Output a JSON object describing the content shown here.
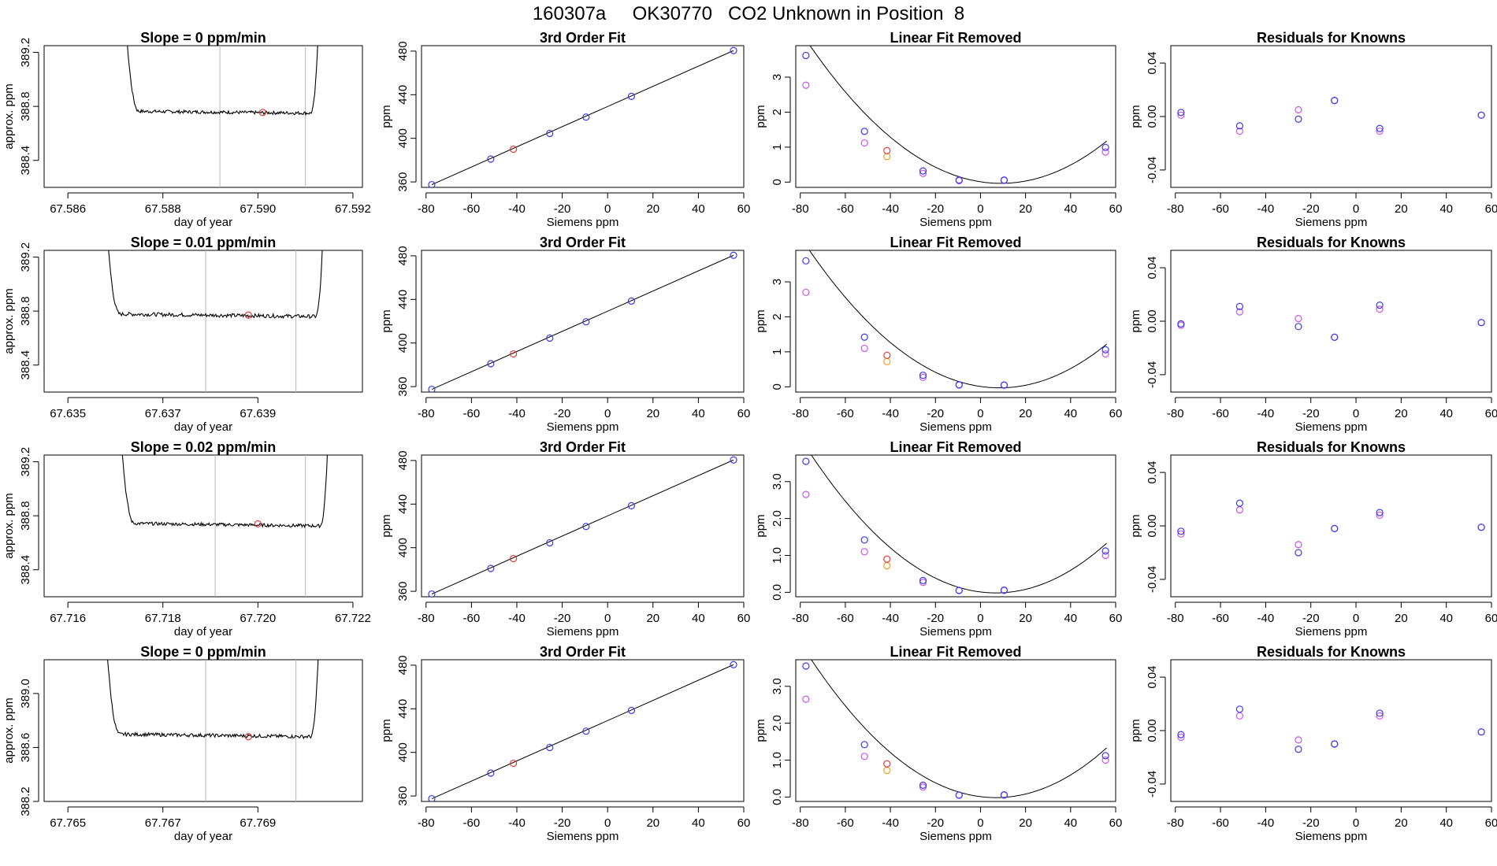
{
  "page_title": "160307a     OK30770   CO2 Unknown in Position  8",
  "colors": {
    "blue": "#3a3ae8",
    "magenta": "#cc55e6",
    "red": "#e03a3a",
    "orange": "#f0a020",
    "gray_line": "#b8b8b8",
    "trace": "#000000"
  },
  "chart_data": [
    {
      "type": "line",
      "row": 0,
      "title": "Slope =  0  ppm/min",
      "xlabel": "day of year",
      "ylabel": "approx. ppm",
      "xlim": [
        67.5855,
        67.5922
      ],
      "ylim": [
        388.2,
        389.25
      ],
      "xticks": [
        67.586,
        67.588,
        67.59,
        67.592
      ],
      "xtick_labels": [
        "67.586",
        "67.588",
        "67.590",
        "67.592"
      ],
      "yticks": [
        388.4,
        388.8,
        389.2
      ],
      "ytick_labels": [
        "388.4",
        "388.8",
        "389.2"
      ],
      "vlines": [
        67.5892,
        67.591
      ],
      "trace": {
        "x0": 67.5868,
        "x1": 67.5913,
        "rise_left": 67.5871,
        "rise_right": 67.5911,
        "level": 388.765,
        "noise": 0.012,
        "drift": -0.015
      },
      "marker": {
        "x": 67.5901,
        "y": 388.755
      }
    },
    {
      "type": "scatter",
      "row": 0,
      "title": "3rd Order Fit",
      "xlabel": "Siemens ppm",
      "ylabel": "ppm",
      "xlim": [
        -82,
        60
      ],
      "ylim": [
        355,
        485
      ],
      "xticks": [
        -80,
        -60,
        -40,
        -20,
        0,
        20,
        40,
        60
      ],
      "yticks": [
        360,
        400,
        440,
        480
      ],
      "fit_line": [
        [
          -77.5,
          357.5
        ],
        [
          55.5,
          480.5
        ]
      ],
      "points_blue": [
        [
          -77.5,
          357.5
        ],
        [
          -51.5,
          381
        ],
        [
          -25.5,
          404.5
        ],
        [
          -9.5,
          419.5
        ],
        [
          10.5,
          438.5
        ],
        [
          55.5,
          480.5
        ]
      ],
      "points_red": [
        [
          -41.5,
          390
        ]
      ]
    },
    {
      "type": "scatter",
      "row": 0,
      "title": "Linear Fit Removed",
      "xlabel": "Siemens ppm",
      "ylabel": "ppm",
      "xlim": [
        -82,
        60
      ],
      "ylim": [
        -0.15,
        3.9
      ],
      "xticks": [
        -80,
        -60,
        -40,
        -20,
        0,
        20,
        40,
        60
      ],
      "yticks": [
        0,
        1,
        2,
        3
      ],
      "curve": {
        "a": 0.000548,
        "b": -0.00994,
        "c": 0.01
      },
      "points_blue": [
        [
          -77.5,
          3.62
        ],
        [
          -51.5,
          1.45
        ],
        [
          -25.5,
          0.32
        ],
        [
          -9.5,
          0.06
        ],
        [
          10.5,
          0.06
        ],
        [
          55.5,
          0.99
        ]
      ],
      "points_magenta": [
        [
          -77.5,
          2.77
        ],
        [
          -51.5,
          1.12
        ],
        [
          -25.5,
          0.25
        ],
        [
          -9.5,
          0.04
        ],
        [
          10.5,
          0.05
        ],
        [
          55.5,
          0.86
        ]
      ],
      "points_red": [
        [
          -41.5,
          0.9
        ]
      ],
      "points_orange": [
        [
          -41.5,
          0.73
        ]
      ]
    },
    {
      "type": "scatter",
      "row": 0,
      "title": "Residuals for Knowns",
      "xlabel": "Siemens ppm",
      "ylabel": "ppm",
      "xlim": [
        -82,
        60
      ],
      "ylim": [
        -0.053,
        0.053
      ],
      "xticks": [
        -80,
        -60,
        -40,
        -20,
        0,
        20,
        40,
        60
      ],
      "yticks": [
        -0.04,
        0.0,
        0.04
      ],
      "ytick_labels": [
        "-0.04",
        "0.00",
        "0.04"
      ],
      "points_blue": [
        [
          -77.5,
          0.003
        ],
        [
          -51.5,
          -0.007
        ],
        [
          -25.5,
          -0.002
        ],
        [
          -9.5,
          0.012
        ],
        [
          10.5,
          -0.009
        ],
        [
          55.5,
          0.001
        ]
      ],
      "points_magenta": [
        [
          -77.5,
          0.001
        ],
        [
          -51.5,
          -0.011
        ],
        [
          -25.5,
          0.005
        ],
        [
          -9.5,
          0.012
        ],
        [
          10.5,
          -0.011
        ],
        [
          55.5,
          0.001
        ]
      ]
    },
    {
      "type": "line",
      "row": 1,
      "title": "Slope =  0.01  ppm/min",
      "xlabel": "day of year",
      "ylabel": "approx. ppm",
      "xlim": [
        67.6345,
        67.6412
      ],
      "ylim": [
        388.2,
        389.25
      ],
      "xticks": [
        67.635,
        67.637,
        67.639
      ],
      "xtick_labels": [
        "67.635",
        "67.637",
        "67.639"
      ],
      "yticks": [
        388.4,
        388.8,
        389.2
      ],
      "ytick_labels": [
        "388.4",
        "388.8",
        "389.2"
      ],
      "vlines": [
        67.6379,
        67.6398
      ],
      "trace": {
        "x0": 67.6354,
        "x1": 67.6404,
        "rise_left": 67.6357,
        "rise_right": 67.6402,
        "level": 388.78,
        "noise": 0.014,
        "drift": -0.02
      },
      "marker": {
        "x": 67.6388,
        "y": 388.77
      }
    },
    {
      "type": "scatter",
      "row": 1,
      "title": "3rd Order Fit",
      "xlabel": "Siemens ppm",
      "ylabel": "ppm",
      "xlim": [
        -82,
        60
      ],
      "ylim": [
        355,
        485
      ],
      "xticks": [
        -80,
        -60,
        -40,
        -20,
        0,
        20,
        40,
        60
      ],
      "yticks": [
        360,
        400,
        440,
        480
      ],
      "fit_line": [
        [
          -77.5,
          357.5
        ],
        [
          55.5,
          480.5
        ]
      ],
      "points_blue": [
        [
          -77.5,
          357.5
        ],
        [
          -51.5,
          381
        ],
        [
          -25.5,
          404.5
        ],
        [
          -9.5,
          419.5
        ],
        [
          10.5,
          438.5
        ],
        [
          55.5,
          480.5
        ]
      ],
      "points_red": [
        [
          -41.5,
          390
        ]
      ]
    },
    {
      "type": "scatter",
      "row": 1,
      "title": "Linear Fit Removed",
      "xlabel": "Siemens ppm",
      "ylabel": "ppm",
      "xlim": [
        -82,
        60
      ],
      "ylim": [
        -0.15,
        3.9
      ],
      "xticks": [
        -80,
        -60,
        -40,
        -20,
        0,
        20,
        40,
        60
      ],
      "yticks": [
        0,
        1,
        2,
        3
      ],
      "curve": {
        "a": 0.000552,
        "b": -0.00932,
        "c": 0.01
      },
      "points_blue": [
        [
          -77.5,
          3.6
        ],
        [
          -51.5,
          1.42
        ],
        [
          -25.5,
          0.33
        ],
        [
          -9.5,
          0.06
        ],
        [
          10.5,
          0.05
        ],
        [
          55.5,
          1.06
        ]
      ],
      "points_magenta": [
        [
          -77.5,
          2.7
        ],
        [
          -51.5,
          1.1
        ],
        [
          -25.5,
          0.27
        ],
        [
          -9.5,
          0.05
        ],
        [
          10.5,
          0.05
        ],
        [
          55.5,
          0.94
        ]
      ],
      "points_red": [
        [
          -41.5,
          0.9
        ]
      ],
      "points_orange": [
        [
          -41.5,
          0.72
        ]
      ]
    },
    {
      "type": "scatter",
      "row": 1,
      "title": "Residuals for Knowns",
      "xlabel": "Siemens ppm",
      "ylabel": "ppm",
      "xlim": [
        -82,
        60
      ],
      "ylim": [
        -0.053,
        0.053
      ],
      "xticks": [
        -80,
        -60,
        -40,
        -20,
        0,
        20,
        40,
        60
      ],
      "yticks": [
        -0.04,
        0.0,
        0.04
      ],
      "ytick_labels": [
        "-0.04",
        "0.00",
        "0.04"
      ],
      "points_blue": [
        [
          -77.5,
          -0.002
        ],
        [
          -51.5,
          0.011
        ],
        [
          -25.5,
          -0.004
        ],
        [
          -9.5,
          -0.012
        ],
        [
          10.5,
          0.012
        ],
        [
          55.5,
          -0.001
        ]
      ],
      "points_magenta": [
        [
          -77.5,
          -0.003
        ],
        [
          -51.5,
          0.007
        ],
        [
          -25.5,
          0.002
        ],
        [
          -9.5,
          -0.012
        ],
        [
          10.5,
          0.009
        ],
        [
          55.5,
          -0.001
        ]
      ]
    },
    {
      "type": "line",
      "row": 2,
      "title": "Slope =  0.02  ppm/min",
      "xlabel": "day of year",
      "ylabel": "approx. ppm",
      "xlim": [
        67.7155,
        67.7222
      ],
      "ylim": [
        388.2,
        389.25
      ],
      "xticks": [
        67.716,
        67.718,
        67.72,
        67.722
      ],
      "xtick_labels": [
        "67.716",
        "67.718",
        "67.720",
        "67.722"
      ],
      "yticks": [
        388.4,
        388.8,
        389.2
      ],
      "ytick_labels": [
        "388.4",
        "388.8",
        "389.2"
      ],
      "vlines": [
        67.7191,
        67.721
      ],
      "trace": {
        "x0": 67.7167,
        "x1": 67.7215,
        "rise_left": 67.717,
        "rise_right": 67.7213,
        "level": 388.745,
        "noise": 0.012,
        "drift": -0.02
      },
      "marker": {
        "x": 67.72,
        "y": 388.74
      }
    },
    {
      "type": "scatter",
      "row": 2,
      "title": "3rd Order Fit",
      "xlabel": "Siemens ppm",
      "ylabel": "ppm",
      "xlim": [
        -82,
        60
      ],
      "ylim": [
        355,
        485
      ],
      "xticks": [
        -80,
        -60,
        -40,
        -20,
        0,
        20,
        40,
        60
      ],
      "yticks": [
        360,
        400,
        440,
        480
      ],
      "fit_line": [
        [
          -77.5,
          357.5
        ],
        [
          55.5,
          480.5
        ]
      ],
      "points_blue": [
        [
          -77.5,
          357.5
        ],
        [
          -51.5,
          381
        ],
        [
          -25.5,
          404.5
        ],
        [
          -9.5,
          419.5
        ],
        [
          10.5,
          438.5
        ],
        [
          55.5,
          480.5
        ]
      ],
      "points_red": [
        [
          -41.5,
          390
        ]
      ]
    },
    {
      "type": "scatter",
      "row": 2,
      "title": "Linear Fit Removed",
      "xlabel": "Siemens ppm",
      "ylabel": "ppm",
      "xlim": [
        -82,
        60
      ],
      "ylim": [
        -0.12,
        3.72
      ],
      "xticks": [
        -80,
        -60,
        -40,
        -20,
        0,
        20,
        40,
        60
      ],
      "yticks": [
        0,
        1,
        2,
        3
      ],
      "ytick_labels": [
        "0.0",
        "1.0",
        "2.0",
        "3.0"
      ],
      "curve": {
        "a": 0.000557,
        "b": -0.0076,
        "c": 0.01
      },
      "points_blue": [
        [
          -77.5,
          3.55
        ],
        [
          -51.5,
          1.42
        ],
        [
          -25.5,
          0.32
        ],
        [
          -9.5,
          0.05
        ],
        [
          10.5,
          0.06
        ],
        [
          55.5,
          1.12
        ]
      ],
      "points_magenta": [
        [
          -77.5,
          2.65
        ],
        [
          -51.5,
          1.1
        ],
        [
          -25.5,
          0.27
        ],
        [
          -9.5,
          0.05
        ],
        [
          10.5,
          0.05
        ],
        [
          55.5,
          1.0
        ]
      ],
      "points_red": [
        [
          -41.5,
          0.9
        ]
      ],
      "points_orange": [
        [
          -41.5,
          0.72
        ]
      ]
    },
    {
      "type": "scatter",
      "row": 2,
      "title": "Residuals for Knowns",
      "xlabel": "Siemens ppm",
      "ylabel": "ppm",
      "xlim": [
        -82,
        60
      ],
      "ylim": [
        -0.053,
        0.053
      ],
      "xticks": [
        -80,
        -60,
        -40,
        -20,
        0,
        20,
        40,
        60
      ],
      "yticks": [
        -0.04,
        0.0,
        0.04
      ],
      "ytick_labels": [
        "-0.04",
        "0.00",
        "0.04"
      ],
      "points_blue": [
        [
          -77.5,
          -0.004
        ],
        [
          -51.5,
          0.017
        ],
        [
          -25.5,
          -0.02
        ],
        [
          -9.5,
          -0.002
        ],
        [
          10.5,
          0.01
        ],
        [
          55.5,
          -0.001
        ]
      ],
      "points_magenta": [
        [
          -77.5,
          -0.006
        ],
        [
          -51.5,
          0.012
        ],
        [
          -25.5,
          -0.014
        ],
        [
          -9.5,
          -0.002
        ],
        [
          10.5,
          0.008
        ],
        [
          55.5,
          -0.001
        ]
      ]
    },
    {
      "type": "line",
      "row": 3,
      "title": "Slope =  0  ppm/min",
      "xlabel": "day of year",
      "ylabel": "approx. ppm",
      "xlim": [
        67.7645,
        67.7712
      ],
      "ylim": [
        388.2,
        389.25
      ],
      "xticks": [
        67.765,
        67.767,
        67.769
      ],
      "xtick_labels": [
        "67.765",
        "67.767",
        "67.769"
      ],
      "yticks": [
        388.2,
        388.6,
        389.0
      ],
      "ytick_labels": [
        "388.2",
        "388.6",
        "389.0"
      ],
      "vlines": [
        67.7679,
        67.7698
      ],
      "trace": {
        "x0": 67.7654,
        "x1": 67.7703,
        "rise_left": 67.7657,
        "rise_right": 67.7701,
        "level": 388.7,
        "noise": 0.013,
        "drift": -0.02
      },
      "marker": {
        "x": 67.7688,
        "y": 388.68
      }
    },
    {
      "type": "scatter",
      "row": 3,
      "title": "3rd Order Fit",
      "xlabel": "Siemens ppm",
      "ylabel": "ppm",
      "xlim": [
        -82,
        60
      ],
      "ylim": [
        355,
        485
      ],
      "xticks": [
        -80,
        -60,
        -40,
        -20,
        0,
        20,
        40,
        60
      ],
      "yticks": [
        360,
        400,
        440,
        480
      ],
      "fit_line": [
        [
          -77.5,
          357.5
        ],
        [
          55.5,
          480.5
        ]
      ],
      "points_blue": [
        [
          -77.5,
          357.5
        ],
        [
          -51.5,
          381
        ],
        [
          -25.5,
          404.5
        ],
        [
          -9.5,
          419.5
        ],
        [
          10.5,
          438.5
        ],
        [
          55.5,
          480.5
        ]
      ],
      "points_red": [
        [
          -41.5,
          390
        ]
      ]
    },
    {
      "type": "scatter",
      "row": 3,
      "title": "Linear Fit Removed",
      "xlabel": "Siemens ppm",
      "ylabel": "ppm",
      "xlim": [
        -82,
        60
      ],
      "ylim": [
        -0.12,
        3.72
      ],
      "xticks": [
        -80,
        -60,
        -40,
        -20,
        0,
        20,
        40,
        60
      ],
      "yticks": [
        0,
        1,
        2,
        3
      ],
      "ytick_labels": [
        "0.0",
        "1.0",
        "2.0",
        "3.0"
      ],
      "curve": {
        "a": 0.000557,
        "b": -0.0076,
        "c": 0.01
      },
      "points_blue": [
        [
          -77.5,
          3.55
        ],
        [
          -51.5,
          1.42
        ],
        [
          -25.5,
          0.32
        ],
        [
          -9.5,
          0.05
        ],
        [
          10.5,
          0.06
        ],
        [
          55.5,
          1.12
        ]
      ],
      "points_magenta": [
        [
          -77.5,
          2.65
        ],
        [
          -51.5,
          1.1
        ],
        [
          -25.5,
          0.27
        ],
        [
          -9.5,
          0.05
        ],
        [
          10.5,
          0.05
        ],
        [
          55.5,
          1.0
        ]
      ],
      "points_red": [
        [
          -41.5,
          0.9
        ]
      ],
      "points_orange": [
        [
          -41.5,
          0.72
        ]
      ]
    },
    {
      "type": "scatter",
      "row": 3,
      "title": "Residuals for Knowns",
      "xlabel": "Siemens ppm",
      "ylabel": "ppm",
      "xlim": [
        -82,
        60
      ],
      "ylim": [
        -0.053,
        0.053
      ],
      "xticks": [
        -80,
        -60,
        -40,
        -20,
        0,
        20,
        40,
        60
      ],
      "yticks": [
        -0.04,
        0.0,
        0.04
      ],
      "ytick_labels": [
        "-0.04",
        "0.00",
        "0.04"
      ],
      "points_blue": [
        [
          -77.5,
          -0.003
        ],
        [
          -51.5,
          0.016
        ],
        [
          -25.5,
          -0.014
        ],
        [
          -9.5,
          -0.01
        ],
        [
          10.5,
          0.013
        ],
        [
          55.5,
          -0.001
        ]
      ],
      "points_magenta": [
        [
          -77.5,
          -0.005
        ],
        [
          -51.5,
          0.011
        ],
        [
          -25.5,
          -0.007
        ],
        [
          -9.5,
          -0.01
        ],
        [
          10.5,
          0.011
        ],
        [
          55.5,
          -0.001
        ]
      ]
    }
  ]
}
